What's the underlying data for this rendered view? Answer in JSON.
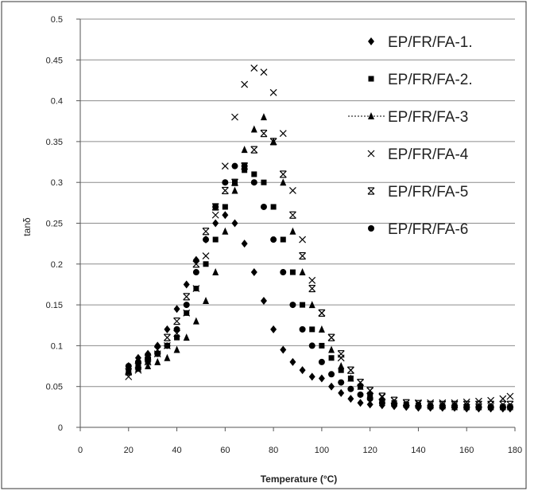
{
  "chart_data": {
    "type": "scatter",
    "title": "",
    "xlabel": "Temperature (°C)",
    "ylabel": "tanδ",
    "xlim": [
      0,
      180
    ],
    "ylim": [
      0,
      0.5
    ],
    "x_ticks": [
      "0",
      "20",
      "40",
      "60",
      "80",
      "100",
      "120",
      "140",
      "160",
      "180"
    ],
    "y_ticks": [
      "0",
      "0.05",
      "0.1",
      "0.15",
      "0.2",
      "0.25",
      "0.3",
      "0.35",
      "0.4",
      "0.45",
      "0.5"
    ],
    "grid": "horizontal",
    "legend_position": "top-right",
    "series": [
      {
        "name": "EP/FR/FA-1.",
        "marker": "diamond",
        "x": [
          20,
          24,
          28,
          32,
          36,
          40,
          44,
          48,
          52,
          56,
          60,
          64,
          68,
          72,
          76,
          80,
          84,
          88,
          92,
          96,
          100,
          104,
          108,
          112,
          116,
          120,
          125,
          130,
          135,
          140,
          145,
          150,
          155,
          160,
          165,
          170,
          175,
          178
        ],
        "y": [
          0.075,
          0.085,
          0.09,
          0.1,
          0.12,
          0.145,
          0.175,
          0.205,
          0.23,
          0.25,
          0.26,
          0.25,
          0.225,
          0.19,
          0.155,
          0.12,
          0.095,
          0.08,
          0.07,
          0.062,
          0.06,
          0.05,
          0.042,
          0.035,
          0.03,
          0.028,
          0.027,
          0.026,
          0.025,
          0.024,
          0.024,
          0.024,
          0.024,
          0.023,
          0.023,
          0.023,
          0.023,
          0.023
        ]
      },
      {
        "name": "EP/FR/FA-2.",
        "marker": "square",
        "x": [
          20,
          24,
          28,
          32,
          36,
          40,
          44,
          48,
          52,
          56,
          60,
          64,
          68,
          72,
          76,
          80,
          84,
          88,
          92,
          96,
          100,
          104,
          108,
          112,
          116,
          120,
          125,
          130,
          135,
          140,
          145,
          150,
          155,
          160,
          165,
          170,
          175,
          178
        ],
        "y": [
          0.068,
          0.075,
          0.08,
          0.09,
          0.1,
          0.11,
          0.14,
          0.17,
          0.2,
          0.23,
          0.27,
          0.3,
          0.315,
          0.31,
          0.3,
          0.27,
          0.23,
          0.19,
          0.15,
          0.12,
          0.1,
          0.085,
          0.07,
          0.06,
          0.05,
          0.04,
          0.032,
          0.03,
          0.028,
          0.027,
          0.026,
          0.026,
          0.026,
          0.025,
          0.025,
          0.025,
          0.025,
          0.025
        ]
      },
      {
        "name": "EP/FR/FA-3",
        "marker": "triangle",
        "x": [
          20,
          24,
          28,
          32,
          36,
          40,
          44,
          48,
          52,
          56,
          60,
          64,
          68,
          72,
          76,
          80,
          84,
          88,
          92,
          96,
          100,
          104,
          108,
          112,
          116,
          120,
          125,
          130,
          135,
          140,
          145,
          150,
          155,
          160,
          165,
          170,
          175,
          178
        ],
        "y": [
          0.07,
          0.072,
          0.075,
          0.08,
          0.085,
          0.095,
          0.11,
          0.13,
          0.155,
          0.19,
          0.24,
          0.29,
          0.34,
          0.365,
          0.38,
          0.35,
          0.3,
          0.24,
          0.19,
          0.15,
          0.12,
          0.095,
          0.075,
          0.06,
          0.05,
          0.04,
          0.033,
          0.03,
          0.028,
          0.027,
          0.026,
          0.026,
          0.025,
          0.025,
          0.025,
          0.025,
          0.025,
          0.025
        ]
      },
      {
        "name": "EP/FR/FA-4",
        "marker": "cross",
        "x": [
          20,
          24,
          28,
          32,
          36,
          40,
          44,
          48,
          52,
          56,
          60,
          64,
          68,
          72,
          76,
          80,
          84,
          88,
          92,
          96,
          100,
          104,
          108,
          112,
          116,
          120,
          125,
          130,
          135,
          140,
          145,
          150,
          155,
          160,
          165,
          170,
          175,
          178
        ],
        "y": [
          0.062,
          0.07,
          0.08,
          0.09,
          0.1,
          0.115,
          0.14,
          0.17,
          0.21,
          0.26,
          0.32,
          0.38,
          0.42,
          0.44,
          0.435,
          0.41,
          0.36,
          0.29,
          0.23,
          0.18,
          0.14,
          0.11,
          0.085,
          0.07,
          0.055,
          0.045,
          0.037,
          0.033,
          0.03,
          0.03,
          0.03,
          0.03,
          0.03,
          0.031,
          0.032,
          0.033,
          0.035,
          0.038
        ]
      },
      {
        "name": "EP/FR/FA-5",
        "marker": "asterisk",
        "x": [
          20,
          24,
          28,
          32,
          36,
          40,
          44,
          48,
          52,
          56,
          60,
          64,
          68,
          72,
          76,
          80,
          84,
          88,
          92,
          96,
          100,
          104,
          108,
          112,
          116,
          120,
          125,
          130,
          135,
          140,
          145,
          150,
          155,
          160,
          165,
          170,
          175,
          178
        ],
        "y": [
          0.068,
          0.075,
          0.085,
          0.095,
          0.11,
          0.13,
          0.16,
          0.2,
          0.24,
          0.27,
          0.29,
          0.3,
          0.32,
          0.34,
          0.36,
          0.35,
          0.31,
          0.26,
          0.21,
          0.17,
          0.14,
          0.11,
          0.09,
          0.07,
          0.055,
          0.045,
          0.038,
          0.033,
          0.03,
          0.029,
          0.028,
          0.028,
          0.028,
          0.028,
          0.028,
          0.028,
          0.028,
          0.028
        ]
      },
      {
        "name": "EP/FR/FA-6",
        "marker": "circle",
        "x": [
          20,
          24,
          28,
          32,
          36,
          40,
          44,
          48,
          52,
          56,
          60,
          64,
          68,
          72,
          76,
          80,
          84,
          88,
          92,
          96,
          100,
          104,
          108,
          112,
          116,
          120,
          125,
          130,
          135,
          140,
          145,
          150,
          155,
          160,
          165,
          170,
          175,
          178
        ],
        "y": [
          0.075,
          0.08,
          0.085,
          0.09,
          0.1,
          0.12,
          0.15,
          0.19,
          0.23,
          0.27,
          0.3,
          0.32,
          0.32,
          0.3,
          0.27,
          0.23,
          0.19,
          0.15,
          0.12,
          0.1,
          0.08,
          0.065,
          0.055,
          0.047,
          0.04,
          0.035,
          0.03,
          0.028,
          0.027,
          0.026,
          0.026,
          0.025,
          0.025,
          0.025,
          0.025,
          0.025,
          0.025,
          0.025
        ]
      }
    ]
  }
}
